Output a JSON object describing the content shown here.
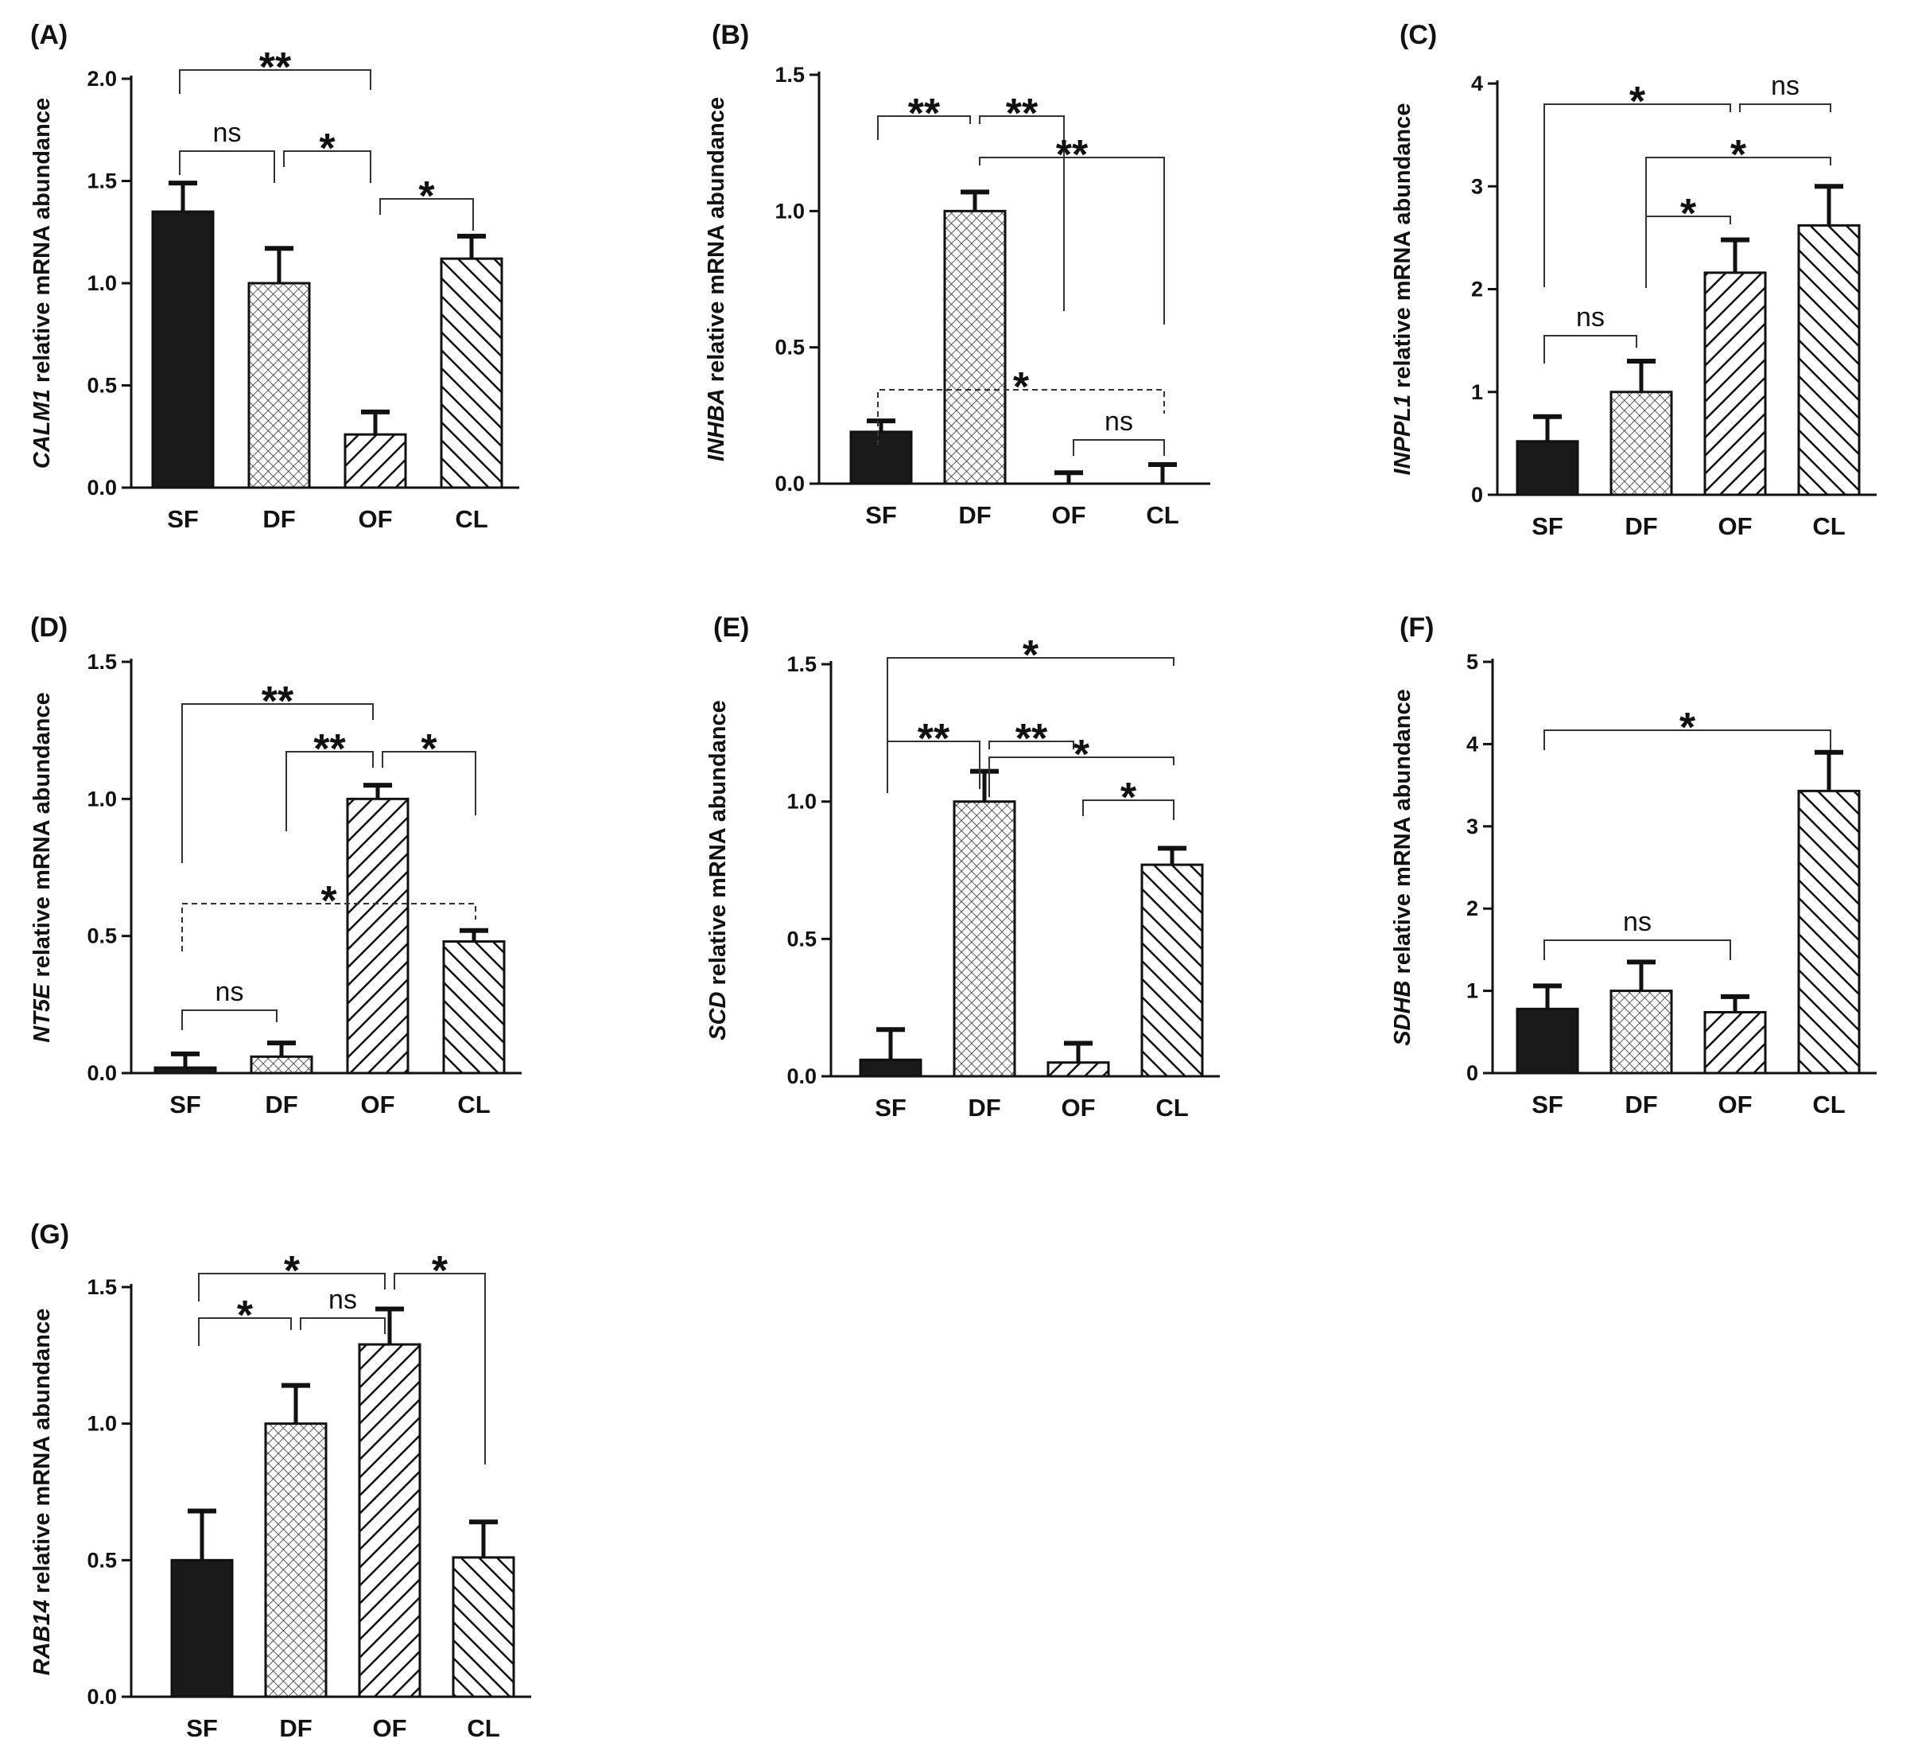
{
  "figure": {
    "categories": [
      "SF",
      "DF",
      "OF",
      "CL"
    ],
    "patterns": [
      "solid",
      "crosshatch",
      "diagonal-up",
      "diagonal-down"
    ],
    "colors": {
      "ink": "#111111",
      "background": "#ffffff",
      "bar_fill": "#1a1a1a"
    }
  },
  "chart_data": [
    {
      "panel": "(A)",
      "type": "bar",
      "gene": "CALM1",
      "ylabel_suffix": " relative mRNA abundance",
      "categories": [
        "SF",
        "DF",
        "OF",
        "CL"
      ],
      "values": [
        1.35,
        1.0,
        0.26,
        1.12
      ],
      "errors": [
        0.14,
        0.17,
        0.11,
        0.11
      ],
      "ylim": [
        0,
        2.0
      ],
      "ticks": [
        0,
        0.5,
        1.0,
        1.5,
        2.0
      ],
      "tick_labels": [
        "0.0",
        "0.5",
        "1.0",
        "1.5",
        "2.0"
      ],
      "comparisons": [
        {
          "from": 0,
          "to": 2,
          "label": "**",
          "dashed": false
        },
        {
          "from": 0,
          "to": 1,
          "label": "ns",
          "dashed": false
        },
        {
          "from": 1,
          "to": 2,
          "label": "*",
          "dashed": false
        },
        {
          "from": 2,
          "to": 3,
          "label": "*",
          "dashed": false
        }
      ]
    },
    {
      "panel": "(B)",
      "type": "bar",
      "gene": "INHBA",
      "ylabel_suffix": " relative mRNA abundance",
      "categories": [
        "SF",
        "DF",
        "OF",
        "CL"
      ],
      "values": [
        0.19,
        1.0,
        0.0,
        0.0
      ],
      "errors": [
        0.04,
        0.07,
        0.04,
        0.07
      ],
      "ylim": [
        0,
        1.5
      ],
      "ticks": [
        0,
        0.5,
        1.0,
        1.5
      ],
      "tick_labels": [
        "0.0",
        "0.5",
        "1.0",
        "1.5"
      ],
      "comparisons": [
        {
          "from": 0,
          "to": 1,
          "label": "**",
          "dashed": false
        },
        {
          "from": 1,
          "to": 2,
          "label": "**",
          "dashed": false
        },
        {
          "from": 1,
          "to": 3,
          "label": "**",
          "dashed": false
        },
        {
          "from": 0,
          "to": 3,
          "label": "*",
          "dashed": true
        },
        {
          "from": 2,
          "to": 3,
          "label": "ns",
          "dashed": false
        }
      ]
    },
    {
      "panel": "(C)",
      "type": "bar",
      "gene": "INPPL1",
      "ylabel_suffix": " relative mRNA abundance",
      "categories": [
        "SF",
        "DF",
        "OF",
        "CL"
      ],
      "values": [
        0.52,
        1.0,
        2.16,
        2.62
      ],
      "errors": [
        0.24,
        0.3,
        0.32,
        0.38
      ],
      "ylim": [
        0,
        4
      ],
      "ticks": [
        0,
        1,
        2,
        3,
        4
      ],
      "tick_labels": [
        "0",
        "1",
        "2",
        "3",
        "4"
      ],
      "comparisons": [
        {
          "from": 0,
          "to": 2,
          "label": "*",
          "dashed": false
        },
        {
          "from": 2,
          "to": 3,
          "label": "ns",
          "dashed": false
        },
        {
          "from": 1,
          "to": 3,
          "label": "*",
          "dashed": false
        },
        {
          "from": 1,
          "to": 2,
          "label": "*",
          "dashed": false
        },
        {
          "from": 0,
          "to": 1,
          "label": "ns",
          "dashed": false
        }
      ]
    },
    {
      "panel": "(D)",
      "type": "bar",
      "gene": "NT5E",
      "ylabel_suffix": " relative mRNA abundance",
      "categories": [
        "SF",
        "DF",
        "OF",
        "CL"
      ],
      "values": [
        0.02,
        0.06,
        1.0,
        0.48
      ],
      "errors": [
        0.05,
        0.05,
        0.05,
        0.04
      ],
      "ylim": [
        0,
        1.5
      ],
      "ticks": [
        0,
        0.5,
        1.0,
        1.5
      ],
      "tick_labels": [
        "0.0",
        "0.5",
        "1.0",
        "1.5"
      ],
      "comparisons": [
        {
          "from": 0,
          "to": 2,
          "label": "**",
          "dashed": false
        },
        {
          "from": 1,
          "to": 2,
          "label": "**",
          "dashed": false
        },
        {
          "from": 2,
          "to": 3,
          "label": "*",
          "dashed": false
        },
        {
          "from": 0,
          "to": 3,
          "label": "*",
          "dashed": true
        },
        {
          "from": 0,
          "to": 1,
          "label": "ns",
          "dashed": false
        }
      ]
    },
    {
      "panel": "(E)",
      "type": "bar",
      "gene": "SCD",
      "ylabel_suffix": " relative mRNA abundance",
      "categories": [
        "SF",
        "DF",
        "OF",
        "CL"
      ],
      "values": [
        0.06,
        1.0,
        0.05,
        0.77
      ],
      "errors": [
        0.11,
        0.11,
        0.07,
        0.06
      ],
      "ylim": [
        0,
        1.5
      ],
      "ticks": [
        0,
        0.5,
        1.0,
        1.5
      ],
      "tick_labels": [
        "0.0",
        "0.5",
        "1.0",
        "1.5"
      ],
      "comparisons": [
        {
          "from": 0,
          "to": 3,
          "label": "*",
          "dashed": false
        },
        {
          "from": 0,
          "to": 1,
          "label": "**",
          "dashed": false
        },
        {
          "from": 1,
          "to": 2,
          "label": "**",
          "dashed": false
        },
        {
          "from": 1,
          "to": 3,
          "label": "*",
          "dashed": false
        },
        {
          "from": 2,
          "to": 3,
          "label": "*",
          "dashed": false
        }
      ]
    },
    {
      "panel": "(F)",
      "type": "bar",
      "gene": "SDHB",
      "ylabel_suffix": " relative mRNA abundance",
      "categories": [
        "SF",
        "DF",
        "OF",
        "CL"
      ],
      "values": [
        0.78,
        1.0,
        0.74,
        3.43
      ],
      "errors": [
        0.28,
        0.35,
        0.19,
        0.47
      ],
      "ylim": [
        0,
        5
      ],
      "ticks": [
        0,
        1,
        2,
        3,
        4,
        5
      ],
      "tick_labels": [
        "0",
        "1",
        "2",
        "3",
        "4",
        "5"
      ],
      "comparisons": [
        {
          "from": 0,
          "to": 3,
          "label": "*",
          "dashed": false
        },
        {
          "from": 0,
          "to": 2,
          "label": "ns",
          "dashed": false
        }
      ]
    },
    {
      "panel": "(G)",
      "type": "bar",
      "gene": "RAB14",
      "ylabel_suffix": " relative mRNA abundance",
      "categories": [
        "SF",
        "DF",
        "OF",
        "CL"
      ],
      "values": [
        0.5,
        1.0,
        1.29,
        0.51
      ],
      "errors": [
        0.18,
        0.14,
        0.13,
        0.13
      ],
      "ylim": [
        0,
        1.5
      ],
      "ticks": [
        0,
        0.5,
        1.0,
        1.5
      ],
      "tick_labels": [
        "0.0",
        "0.5",
        "1.0",
        "1.5"
      ],
      "comparisons": [
        {
          "from": 0,
          "to": 2,
          "label": "*",
          "dashed": false
        },
        {
          "from": 0,
          "to": 1,
          "label": "*",
          "dashed": false
        },
        {
          "from": 1,
          "to": 2,
          "label": "ns",
          "dashed": false
        },
        {
          "from": 2,
          "to": 3,
          "label": "*",
          "dashed": false
        }
      ]
    }
  ]
}
